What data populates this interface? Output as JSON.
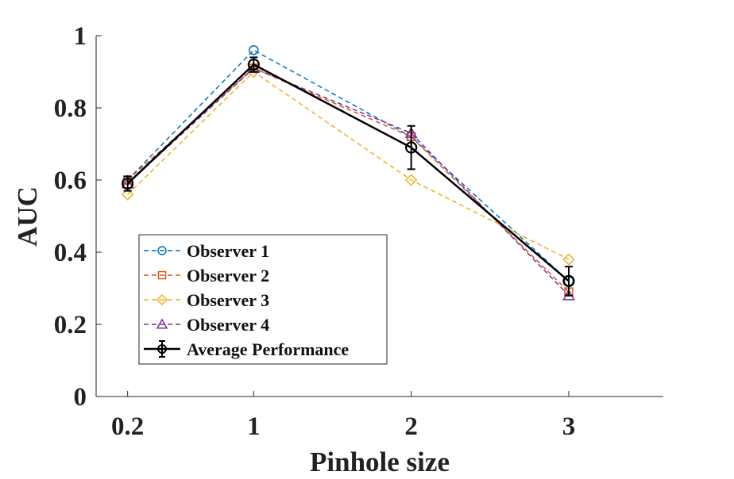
{
  "chart_data": {
    "type": "line",
    "title": "",
    "xlabel": "Pinhole size",
    "ylabel": "AUC",
    "categories": [
      "0.2",
      "1",
      "2",
      "3"
    ],
    "x": [
      0.2,
      1,
      2,
      3
    ],
    "xlim": [
      0,
      3.6
    ],
    "ylim": [
      0,
      1
    ],
    "yticks": [
      "0",
      "0.2",
      "0.4",
      "0.6",
      "0.8",
      "1"
    ],
    "grid": false,
    "legend_position": "lower-left",
    "series": [
      {
        "name": "Observer 1",
        "values": [
          0.6,
          0.96,
          0.72,
          0.32
        ],
        "color": "#0072BD",
        "marker": "circle",
        "linestyle": "dashed"
      },
      {
        "name": "Observer 2",
        "values": [
          0.6,
          0.91,
          0.72,
          0.29
        ],
        "color": "#D95319",
        "marker": "square",
        "linestyle": "dashed"
      },
      {
        "name": "Observer 3",
        "values": [
          0.56,
          0.9,
          0.6,
          0.38
        ],
        "color": "#EDB120",
        "marker": "diamond",
        "linestyle": "dashed"
      },
      {
        "name": "Observer 4",
        "values": [
          0.59,
          0.91,
          0.73,
          0.28
        ],
        "color": "#7E2F8E",
        "marker": "triangle",
        "linestyle": "dashed"
      },
      {
        "name": "Average Performance",
        "values": [
          0.59,
          0.92,
          0.69,
          0.32
        ],
        "errors": [
          0.02,
          0.02,
          0.06,
          0.04
        ],
        "color": "#000000",
        "marker": "circle",
        "linestyle": "solid"
      }
    ]
  }
}
